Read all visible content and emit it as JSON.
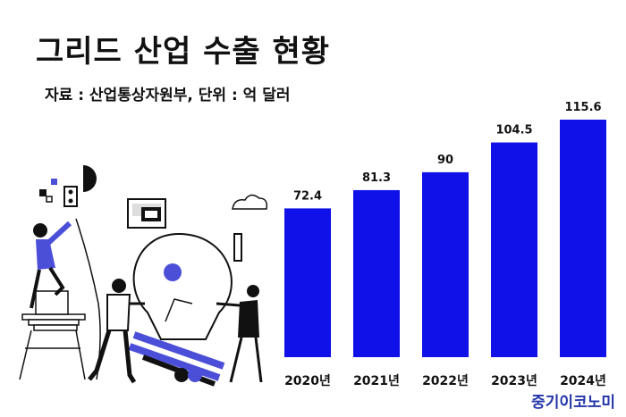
{
  "header": {
    "title": "그리드 산업 수출 현황",
    "subtitle": "자료 : 산업통상자원부, 단위 : 억 달러"
  },
  "brand": "중기이코노미",
  "colors": {
    "bar": "#1010e8",
    "illustration_accent": "#4b4fd8"
  },
  "illustration": {
    "icons": [
      "woman-on-ladder-icon",
      "light-bulb-icon",
      "man-pushing-icon",
      "woman-pulling-icon",
      "cloud-icon",
      "window-icon",
      "shapes-icon"
    ]
  },
  "chart_data": {
    "type": "bar",
    "categories": [
      "2020년",
      "2021년",
      "2022년",
      "2023년",
      "2024년"
    ],
    "values": [
      72.4,
      81.3,
      90,
      104.5,
      115.6
    ],
    "value_labels": [
      "72.4",
      "81.3",
      "90",
      "104.5",
      "115.6"
    ],
    "title": "그리드 산업 수출 현황",
    "xlabel": "",
    "ylabel": "",
    "ylim": [
      0,
      115.6
    ],
    "grid": false,
    "legend": "none"
  }
}
